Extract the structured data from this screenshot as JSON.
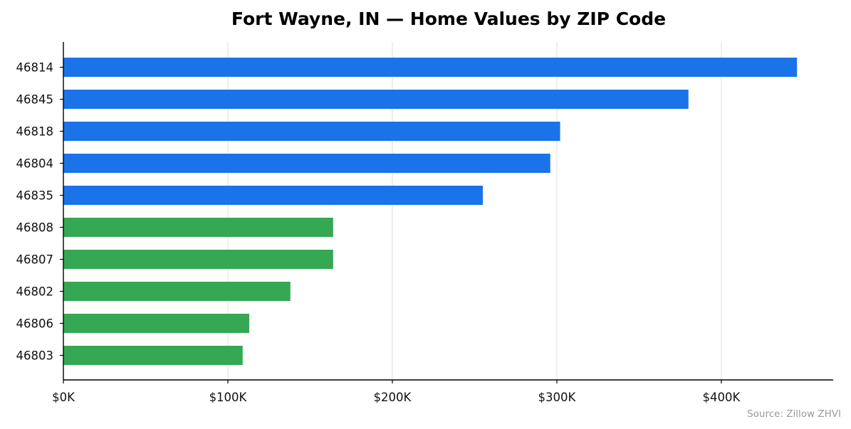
{
  "chart_data": {
    "type": "bar",
    "orientation": "horizontal",
    "title": "Fort Wayne, IN — Home Values by ZIP Code",
    "xlabel": "",
    "ylabel": "",
    "categories": [
      "46814",
      "46845",
      "46818",
      "46804",
      "46835",
      "46808",
      "46807",
      "46802",
      "46806",
      "46803"
    ],
    "values": [
      446000,
      380000,
      302000,
      296000,
      255000,
      164000,
      164000,
      138000,
      113000,
      109000
    ],
    "bar_colors": [
      "#1a73e8",
      "#1a73e8",
      "#1a73e8",
      "#1a73e8",
      "#1a73e8",
      "#34a853",
      "#34a853",
      "#34a853",
      "#34a853",
      "#34a853"
    ],
    "xlim": [
      0,
      468000
    ],
    "xticks": [
      0,
      100000,
      200000,
      300000,
      400000
    ],
    "xtick_labels": [
      "$0K",
      "$100K",
      "$200K",
      "$300K",
      "$400K"
    ],
    "grid": "vertical",
    "legend": "none",
    "source_note": "Source: Zillow ZHVI"
  }
}
